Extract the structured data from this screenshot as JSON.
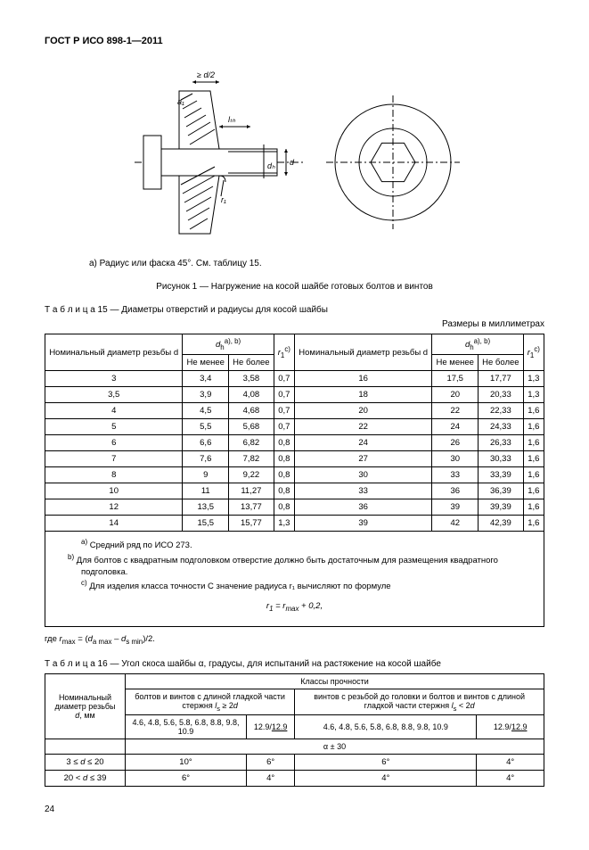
{
  "header": "ГОСТ Р ИСО 898-1—2011",
  "footnote_a": "a) Радиус или фаска 45°. См. таблицу 15.",
  "figure1_caption": "Рисунок 1 — Нагружение на косой шайбе готовых болтов и винтов",
  "table15_caption": "Т а б л и ц а  15 — Диаметры отверстий и радиусы для косой шайбы",
  "dims_note": "Размеры в миллиметрах",
  "table15": {
    "col1": "Номинальный диаметр резьбы d",
    "col_dh": "dₕᵃ⁾, ᵇ⁾",
    "col_min": "Не менее",
    "col_max": "Не более",
    "col_r1": "r₁ᶜ⁾",
    "rows_left": [
      [
        "3",
        "3,4",
        "3,58",
        "0,7"
      ],
      [
        "3,5",
        "3,9",
        "4,08",
        "0,7"
      ],
      [
        "4",
        "4,5",
        "4,68",
        "0,7"
      ],
      [
        "5",
        "5,5",
        "5,68",
        "0,7"
      ],
      [
        "6",
        "6,6",
        "6,82",
        "0,8"
      ],
      [
        "7",
        "7,6",
        "7,82",
        "0,8"
      ],
      [
        "8",
        "9",
        "9,22",
        "0,8"
      ],
      [
        "10",
        "11",
        "11,27",
        "0,8"
      ],
      [
        "12",
        "13,5",
        "13,77",
        "0,8"
      ],
      [
        "14",
        "15,5",
        "15,77",
        "1,3"
      ]
    ],
    "rows_right": [
      [
        "16",
        "17,5",
        "17,77",
        "1,3"
      ],
      [
        "18",
        "20",
        "20,33",
        "1,3"
      ],
      [
        "20",
        "22",
        "22,33",
        "1,6"
      ],
      [
        "22",
        "24",
        "24,33",
        "1,6"
      ],
      [
        "24",
        "26",
        "26,33",
        "1,6"
      ],
      [
        "27",
        "30",
        "30,33",
        "1,6"
      ],
      [
        "30",
        "33",
        "33,39",
        "1,6"
      ],
      [
        "33",
        "36",
        "36,39",
        "1,6"
      ],
      [
        "36",
        "39",
        "39,39",
        "1,6"
      ],
      [
        "39",
        "42",
        "42,39",
        "1,6"
      ]
    ]
  },
  "footnotes": {
    "a": "a) Средний ряд по ИСО  273.",
    "b": "b) Для болтов с квадратным подголовком отверстие должно быть достаточным для размещения квадратного подголовка.",
    "c": "c) Для изделия класса точности С значение радиуса r₁ вычисляют по формуле",
    "formula": "r₁ = rₘₐₓ + 0,2,",
    "where": "где rₘₐₓ = (dₐ ₘₐₓ – dₛ ₘᵢₙ)/2."
  },
  "table16_caption": "Т а б л и ц а  16 — Угол скоса шайбы α, градусы, для испытаний на растяжение на косой шайбе",
  "table16": {
    "col1": "Номинальный диаметр резьбы d, мм",
    "head_classes": "Классы прочности",
    "head_left": "болтов и винтов с длиной гладкой части стержня lₛ ≥ 2d",
    "head_right": "винтов с резьбой до головки и болтов и винтов с длиной гладкой части стержня lₛ < 2d",
    "sub_a": "4.6, 4.8, 5.6, 5.8, 6.8, 8.8, 9.8, 10.9",
    "sub_b": "12.9/12.9",
    "sub_c": "4.6, 4.8, 5.6, 5.8, 6.8, 8.8, 9.8, 10.9",
    "sub_d": "12.9/12.9",
    "alpha_row": "α ± 30",
    "rows": [
      [
        "3 ≤ d ≤ 20",
        "10°",
        "6°",
        "6°",
        "4°"
      ],
      [
        "20 < d ≤ 39",
        "6°",
        "4°",
        "4°",
        "4°"
      ]
    ]
  },
  "page_num": "24",
  "svg": {
    "bolt": {
      "dim_d2": "≥ d/2",
      "dim_a1": "a₁",
      "dim_lth": "lₜₕ",
      "dim_d": "d",
      "dim_dh": "dₕ",
      "dim_r1": "r₁"
    }
  }
}
